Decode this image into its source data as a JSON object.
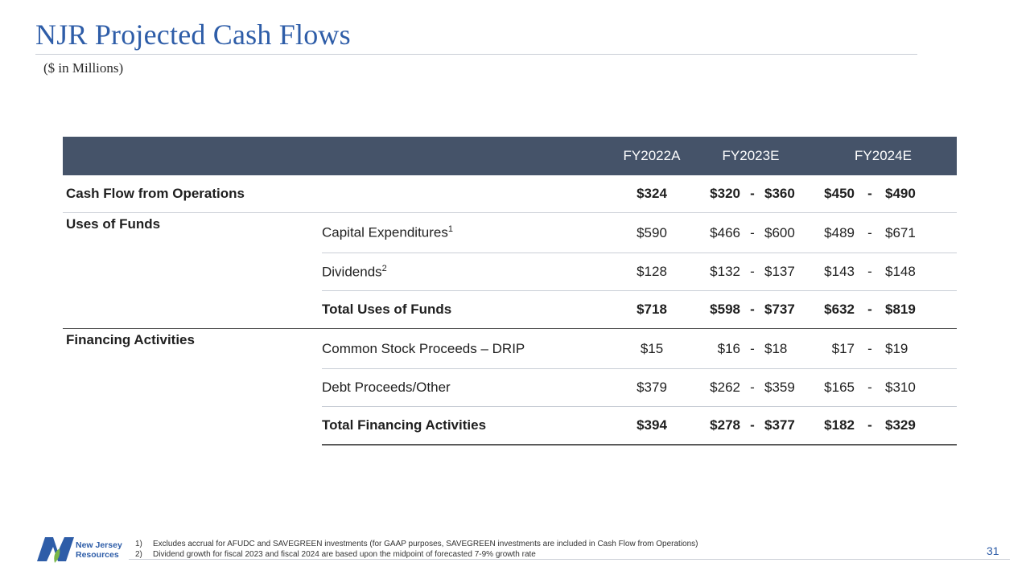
{
  "page": {
    "title": "NJR Projected Cash Flows",
    "subtitle": "($ in Millions)",
    "page_number": "31"
  },
  "table": {
    "headers": {
      "a": "FY2022A",
      "b": "FY2023E",
      "c": "FY2024E"
    },
    "cash_flow_ops": {
      "label": "Cash Flow from Operations",
      "a": "$324",
      "b_lo": "$320",
      "b_hi": "$360",
      "c_lo": "$450",
      "c_hi": "$490"
    },
    "uses_label": "Uses of Funds",
    "capex": {
      "label": "Capital Expenditures",
      "sup": "1",
      "a": "$590",
      "b_lo": "$466",
      "b_hi": "$600",
      "c_lo": "$489",
      "c_hi": "$671"
    },
    "dividends": {
      "label": "Dividends",
      "sup": "2",
      "a": "$128",
      "b_lo": "$132",
      "b_hi": "$137",
      "c_lo": "$143",
      "c_hi": "$148"
    },
    "total_uses": {
      "label": "Total Uses of Funds",
      "a": "$718",
      "b_lo": "$598",
      "b_hi": "$737",
      "c_lo": "$632",
      "c_hi": "$819"
    },
    "financing_label": "Financing Activities",
    "drip": {
      "label": "Common Stock Proceeds – DRIP",
      "a": "$15",
      "b_lo": "$16",
      "b_hi": "$18",
      "c_lo": "$17",
      "c_hi": "$19"
    },
    "debt": {
      "label": "Debt Proceeds/Other",
      "a": "$379",
      "b_lo": "$262",
      "b_hi": "$359",
      "c_lo": "$165",
      "c_hi": "$310"
    },
    "total_fin": {
      "label": "Total Financing Activities",
      "a": "$394",
      "b_lo": "$278",
      "b_hi": "$377",
      "c_lo": "$182",
      "c_hi": "$329"
    },
    "dash": "-"
  },
  "footnotes": [
    {
      "num": "1)",
      "text": "Excludes accrual for AFUDC and SAVEGREEN investments (for GAAP purposes, SAVEGREEN investments are included in Cash Flow from Operations)"
    },
    {
      "num": "2)",
      "text": "Dividend growth for fiscal 2023 and fiscal 2024 are based upon the midpoint of forecasted 7-9% growth rate"
    }
  ],
  "logo": {
    "line1": "New Jersey",
    "line2": "Resources",
    "icon": "njr-logo-icon"
  },
  "colors": {
    "title_blue": "#2e5da8",
    "header_bg": "#455369"
  }
}
